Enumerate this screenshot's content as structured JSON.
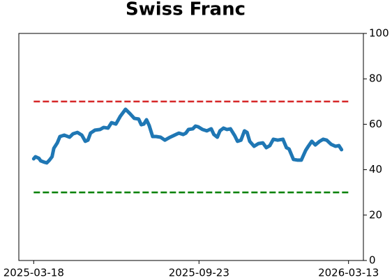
{
  "chart_data": {
    "type": "line",
    "title": "Swiss Franc",
    "x": [
      "2025-03-18",
      "2025-03-20",
      "2025-03-24",
      "2025-03-26",
      "2025-03-30",
      "2025-04-02",
      "2025-04-05",
      "2025-04-08",
      "2025-04-10",
      "2025-04-14",
      "2025-04-17",
      "2025-04-22",
      "2025-04-28",
      "2025-05-02",
      "2025-05-07",
      "2025-05-12",
      "2025-05-16",
      "2025-05-19",
      "2025-05-22",
      "2025-05-27",
      "2025-06-02",
      "2025-06-06",
      "2025-06-11",
      "2025-06-15",
      "2025-06-20",
      "2025-06-25",
      "2025-07-01",
      "2025-07-06",
      "2025-07-11",
      "2025-07-16",
      "2025-07-19",
      "2025-07-22",
      "2025-07-25",
      "2025-07-28",
      "2025-08-01",
      "2025-08-05",
      "2025-08-10",
      "2025-08-15",
      "2025-08-21",
      "2025-08-26",
      "2025-08-31",
      "2025-09-05",
      "2025-09-08",
      "2025-09-11",
      "2025-09-16",
      "2025-09-19",
      "2025-09-22",
      "2025-09-27",
      "2025-10-02",
      "2025-10-07",
      "2025-10-10",
      "2025-10-14",
      "2025-10-17",
      "2025-10-21",
      "2025-10-25",
      "2025-10-29",
      "2025-11-03",
      "2025-11-06",
      "2025-11-10",
      "2025-11-14",
      "2025-11-17",
      "2025-11-20",
      "2025-11-25",
      "2025-11-30",
      "2025-12-05",
      "2025-12-09",
      "2025-12-13",
      "2025-12-17",
      "2025-12-22",
      "2025-12-28",
      "2026-01-01",
      "2026-01-04",
      "2026-01-09",
      "2026-01-14",
      "2026-01-18",
      "2026-01-23",
      "2026-01-26",
      "2026-01-30",
      "2026-02-03",
      "2026-02-08",
      "2026-02-12",
      "2026-02-16",
      "2026-02-21",
      "2026-02-26",
      "2026-03-02",
      "2026-03-05"
    ],
    "series": [
      {
        "color": "#1f77b4",
        "values": [
          44.8,
          45.7,
          45,
          43.9,
          43.3,
          43,
          44.2,
          45.7,
          49.4,
          51.8,
          54.6,
          55.2,
          54.3,
          55.8,
          56.4,
          55.2,
          52.5,
          53,
          56.1,
          57.4,
          57.7,
          58.6,
          58.3,
          60.7,
          60.1,
          63.5,
          66.6,
          64.7,
          62.6,
          62.3,
          59.8,
          60.1,
          62,
          59.5,
          54.6,
          54.6,
          54.3,
          53,
          54.3,
          55.2,
          56.1,
          55.5,
          56.1,
          57.7,
          58,
          59.2,
          58.9,
          57.7,
          57.1,
          58,
          55.5,
          54.3,
          57.1,
          58.3,
          57.7,
          58,
          54.9,
          52.5,
          53,
          57.1,
          56.4,
          52.5,
          50.3,
          51.5,
          51.8,
          49.7,
          50.6,
          53.4,
          53,
          53.4,
          49.7,
          49.1,
          44.5,
          44.2,
          44.2,
          48.5,
          50.3,
          52.5,
          50.9,
          52.5,
          53.4,
          53,
          51.2,
          50.3,
          50.6,
          48.8
        ]
      }
    ],
    "xlim": [
      "2025-03-01",
      "2026-03-30"
    ],
    "xticks": [
      "2025-03-18",
      "2025-09-23",
      "2026-03-13"
    ],
    "ylim": [
      0,
      100
    ],
    "yticks": [
      0,
      20,
      40,
      60,
      80,
      100
    ],
    "y_axis_side": "right",
    "reference_lines": [
      {
        "value": 70,
        "color": "#d62728"
      },
      {
        "value": 30,
        "color": "#008000"
      }
    ]
  }
}
